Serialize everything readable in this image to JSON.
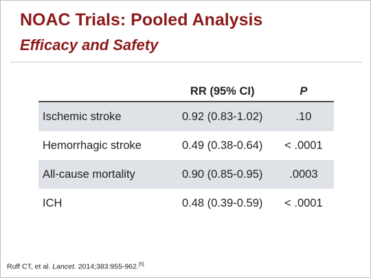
{
  "slide": {
    "title": "NOAC Trials: Pooled Analysis",
    "subtitle": "Efficacy and Safety"
  },
  "table": {
    "header": {
      "outcome": "",
      "rr": "RR (95% CI)",
      "p": "P"
    },
    "rows": [
      {
        "outcome": "Ischemic stroke",
        "rr": "0.92 (0.83-1.02)",
        "p": ".10"
      },
      {
        "outcome": "Hemorrhagic stroke",
        "rr": "0.49 (0.38-0.64)",
        "p": "< .0001"
      },
      {
        "outcome": "All-cause mortality",
        "rr": "0.90 (0.85-0.95)",
        "p": ".0003"
      },
      {
        "outcome": "ICH",
        "rr": "0.48 (0.39-0.59)",
        "p": "< .0001"
      }
    ]
  },
  "footnote": {
    "authors": "Ruff CT, et al. ",
    "journal": "Lancet.",
    "citation": " 2014;383:955-962.",
    "ref": "[5]"
  },
  "colors": {
    "title": "#8b1a1a",
    "row_shade": "#dfe3e8",
    "text": "#222222"
  }
}
